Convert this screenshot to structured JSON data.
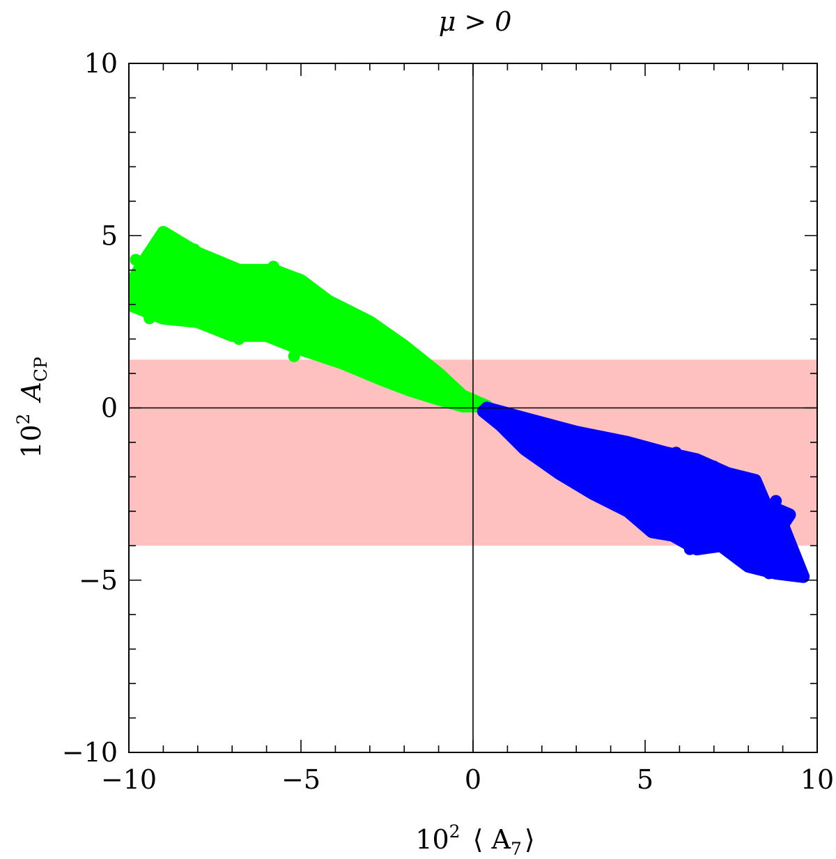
{
  "chart_data": {
    "type": "scatter",
    "title": "μ > 0",
    "xlabel": {
      "prefix": "10",
      "exp": "2",
      "body": "⟨ A",
      "sub": "7",
      "suffix": "⟩"
    },
    "ylabel": {
      "prefix": "10",
      "exp": "2",
      "body": "A",
      "sub": "CP"
    },
    "xlim": [
      -10,
      10
    ],
    "ylim": [
      -10,
      10
    ],
    "x_ticks": [
      {
        "value": -10,
        "label": "−10"
      },
      {
        "value": -5,
        "label": "−5"
      },
      {
        "value": 0,
        "label": "0"
      },
      {
        "value": 5,
        "label": "5"
      },
      {
        "value": 10,
        "label": "10"
      }
    ],
    "y_ticks": [
      {
        "value": -10,
        "label": "−10"
      },
      {
        "value": -5,
        "label": "−5"
      },
      {
        "value": 0,
        "label": "0"
      },
      {
        "value": 5,
        "label": "5"
      },
      {
        "value": 10,
        "label": "10"
      }
    ],
    "minor_tick_step": 1,
    "grid": false,
    "reference_lines": {
      "x": 0,
      "y": 0
    },
    "band": {
      "y_from": -4.0,
      "y_to": 1.4,
      "color": "#ffc0c0"
    },
    "series": [
      {
        "color": "#00ff00",
        "outline": [
          [
            -10,
            3.5
          ],
          [
            -9.6,
            4.2
          ],
          [
            -9.0,
            5.1
          ],
          [
            -8.0,
            4.5
          ],
          [
            -6.8,
            4.0
          ],
          [
            -5.8,
            4.0
          ],
          [
            -5.0,
            3.7
          ],
          [
            -4.2,
            3.1
          ],
          [
            -3.0,
            2.5
          ],
          [
            -2.0,
            1.8
          ],
          [
            -1.0,
            1.0
          ],
          [
            -0.3,
            0.35
          ],
          [
            0.4,
            0.05
          ],
          [
            -0.3,
            0.05
          ],
          [
            -1.0,
            0.25
          ],
          [
            -1.8,
            0.5
          ],
          [
            -2.6,
            0.8
          ],
          [
            -3.8,
            1.3
          ],
          [
            -5.0,
            1.7
          ],
          [
            -6.0,
            2.1
          ],
          [
            -7.0,
            2.1
          ],
          [
            -8.0,
            2.5
          ],
          [
            -9.0,
            2.6
          ],
          [
            -10,
            3.0
          ]
        ],
        "points": [
          [
            -10.0,
            3.5
          ],
          [
            -9.8,
            4.3
          ],
          [
            -9.7,
            3.9
          ],
          [
            -9.6,
            3.6
          ],
          [
            -9.5,
            3.7
          ],
          [
            -9.4,
            4.0
          ],
          [
            -9.6,
            3.1
          ],
          [
            -9.4,
            2.6
          ],
          [
            -9.0,
            5.1
          ],
          [
            -8.9,
            4.8
          ],
          [
            -8.8,
            4.7
          ],
          [
            -9.1,
            4.2
          ],
          [
            -8.5,
            4.3
          ],
          [
            -8.1,
            4.6
          ],
          [
            -8.0,
            4.4
          ],
          [
            -8.5,
            3.2
          ],
          [
            -8.3,
            3.4
          ],
          [
            -7.8,
            3.6
          ],
          [
            -7.6,
            2.9
          ],
          [
            -7.5,
            2.6
          ],
          [
            -7.3,
            2.5
          ],
          [
            -7.2,
            3.9
          ],
          [
            -7.0,
            4.0
          ],
          [
            -6.8,
            3.9
          ],
          [
            -6.6,
            3.8
          ],
          [
            -6.4,
            3.6
          ],
          [
            -7.0,
            2.7
          ],
          [
            -6.8,
            2.0
          ],
          [
            -6.6,
            2.4
          ],
          [
            -6.3,
            3.2
          ],
          [
            -6.2,
            2.2
          ],
          [
            -6.0,
            2.7
          ],
          [
            -5.8,
            4.1
          ],
          [
            -5.7,
            3.8
          ],
          [
            -5.6,
            3.5
          ],
          [
            -5.9,
            3.2
          ],
          [
            -5.8,
            2.9
          ],
          [
            -5.5,
            2.5
          ],
          [
            -5.4,
            2.0
          ],
          [
            -5.2,
            1.5
          ],
          [
            -5.0,
            3.7
          ],
          [
            -4.9,
            3.4
          ],
          [
            -4.8,
            2.8
          ],
          [
            -4.7,
            2.3
          ],
          [
            -4.5,
            2.0
          ],
          [
            -4.6,
            1.6
          ],
          [
            -4.3,
            2.6
          ],
          [
            -4.2,
            3.1
          ],
          [
            -4.0,
            2.4
          ],
          [
            -4.0,
            1.4
          ],
          [
            -3.9,
            2.8
          ],
          [
            -3.8,
            2.0
          ],
          [
            -3.7,
            1.3
          ],
          [
            -3.6,
            2.2
          ],
          [
            -3.5,
            1.7
          ],
          [
            -3.4,
            2.5
          ],
          [
            -3.3,
            1.1
          ],
          [
            -3.2,
            2.1
          ],
          [
            -3.1,
            1.6
          ],
          [
            -3.0,
            1.3
          ],
          [
            -3.0,
            2.4
          ],
          [
            -2.9,
            1.9
          ],
          [
            -2.8,
            1.0
          ],
          [
            -2.7,
            1.6
          ],
          [
            -2.6,
            2.0
          ],
          [
            -2.5,
            1.2
          ],
          [
            -2.5,
            0.8
          ],
          [
            -2.4,
            1.5
          ],
          [
            -2.3,
            1.8
          ],
          [
            -2.2,
            1.0
          ],
          [
            -2.1,
            1.4
          ],
          [
            -2.0,
            0.7
          ],
          [
            -2.0,
            1.2
          ],
          [
            -1.9,
            1.6
          ],
          [
            -1.8,
            0.9
          ],
          [
            -1.7,
            1.2
          ],
          [
            -1.6,
            0.6
          ],
          [
            -1.5,
            1.0
          ],
          [
            -1.4,
            0.8
          ],
          [
            -1.3,
            1.1
          ],
          [
            -1.2,
            0.5
          ],
          [
            -1.1,
            0.8
          ],
          [
            -1.0,
            0.6
          ],
          [
            -0.9,
            0.4
          ],
          [
            -0.8,
            0.7
          ],
          [
            -0.7,
            0.4
          ],
          [
            -0.6,
            0.5
          ],
          [
            -0.5,
            0.3
          ],
          [
            -0.4,
            0.35
          ],
          [
            -0.3,
            0.2
          ],
          [
            -0.2,
            0.25
          ],
          [
            -0.1,
            0.15
          ],
          [
            0.0,
            0.1
          ],
          [
            0.1,
            0.1
          ],
          [
            0.2,
            0.05
          ],
          [
            0.3,
            0.05
          ]
        ]
      },
      {
        "color": "#0000ff",
        "outline": [
          [
            0.4,
            0.0
          ],
          [
            1.5,
            -0.3
          ],
          [
            3.0,
            -0.7
          ],
          [
            4.5,
            -1.0
          ],
          [
            5.6,
            -1.3
          ],
          [
            6.5,
            -1.5
          ],
          [
            7.4,
            -1.9
          ],
          [
            8.2,
            -2.1
          ],
          [
            8.5,
            -2.8
          ],
          [
            9.2,
            -3.1
          ],
          [
            9.0,
            -3.4
          ],
          [
            9.6,
            -4.9
          ],
          [
            8.8,
            -4.8
          ],
          [
            8.0,
            -4.6
          ],
          [
            7.2,
            -4.0
          ],
          [
            6.5,
            -4.1
          ],
          [
            5.8,
            -3.7
          ],
          [
            5.2,
            -3.6
          ],
          [
            4.5,
            -3.0
          ],
          [
            3.5,
            -2.5
          ],
          [
            2.5,
            -1.9
          ],
          [
            1.5,
            -1.2
          ],
          [
            0.8,
            -0.5
          ],
          [
            0.3,
            -0.1
          ]
        ],
        "points": [
          [
            0.4,
            0.0
          ],
          [
            0.6,
            -0.1
          ],
          [
            0.8,
            -0.2
          ],
          [
            1.0,
            -0.3
          ],
          [
            1.2,
            -0.4
          ],
          [
            1.4,
            -0.5
          ],
          [
            1.6,
            -0.6
          ],
          [
            1.8,
            -0.7
          ],
          [
            2.0,
            -0.9
          ],
          [
            2.2,
            -1.0
          ],
          [
            2.4,
            -1.1
          ],
          [
            2.6,
            -1.3
          ],
          [
            2.8,
            -1.4
          ],
          [
            3.0,
            -1.6
          ],
          [
            3.2,
            -1.2
          ],
          [
            3.4,
            -1.9
          ],
          [
            3.6,
            -1.5
          ],
          [
            3.8,
            -2.2
          ],
          [
            4.0,
            -1.3
          ],
          [
            4.2,
            -2.4
          ],
          [
            4.4,
            -1.7
          ],
          [
            4.6,
            -2.8
          ],
          [
            4.8,
            -2.0
          ],
          [
            5.0,
            -1.4
          ],
          [
            5.2,
            -2.6
          ],
          [
            5.3,
            -3.4
          ],
          [
            5.5,
            -1.8
          ],
          [
            5.6,
            -3.6
          ],
          [
            5.8,
            -2.2
          ],
          [
            5.9,
            -1.3
          ],
          [
            6.0,
            -3.0
          ],
          [
            6.1,
            -2.6
          ],
          [
            6.2,
            -1.6
          ],
          [
            6.3,
            -4.1
          ],
          [
            6.4,
            -3.5
          ],
          [
            6.5,
            -2.1
          ],
          [
            6.6,
            -1.8
          ],
          [
            6.6,
            -3.2
          ],
          [
            6.7,
            -3.7
          ],
          [
            6.8,
            -2.4
          ],
          [
            6.9,
            -2.9
          ],
          [
            7.0,
            -1.7
          ],
          [
            7.0,
            -3.9
          ],
          [
            7.1,
            -3.3
          ],
          [
            7.2,
            -2.7
          ],
          [
            7.3,
            -2.2
          ],
          [
            7.4,
            -4.0
          ],
          [
            7.5,
            -3.6
          ],
          [
            7.6,
            -2.0
          ],
          [
            7.7,
            -3.0
          ],
          [
            7.8,
            -4.2
          ],
          [
            7.9,
            -3.5
          ],
          [
            8.0,
            -4.6
          ],
          [
            8.1,
            -3.8
          ],
          [
            8.2,
            -2.1
          ],
          [
            8.3,
            -4.4
          ],
          [
            8.4,
            -3.4
          ],
          [
            8.6,
            -4.8
          ],
          [
            8.7,
            -4.0
          ],
          [
            8.8,
            -2.7
          ],
          [
            8.9,
            -3.2
          ],
          [
            9.0,
            -4.7
          ],
          [
            9.2,
            -3.1
          ],
          [
            9.6,
            -4.9
          ]
        ]
      }
    ]
  }
}
